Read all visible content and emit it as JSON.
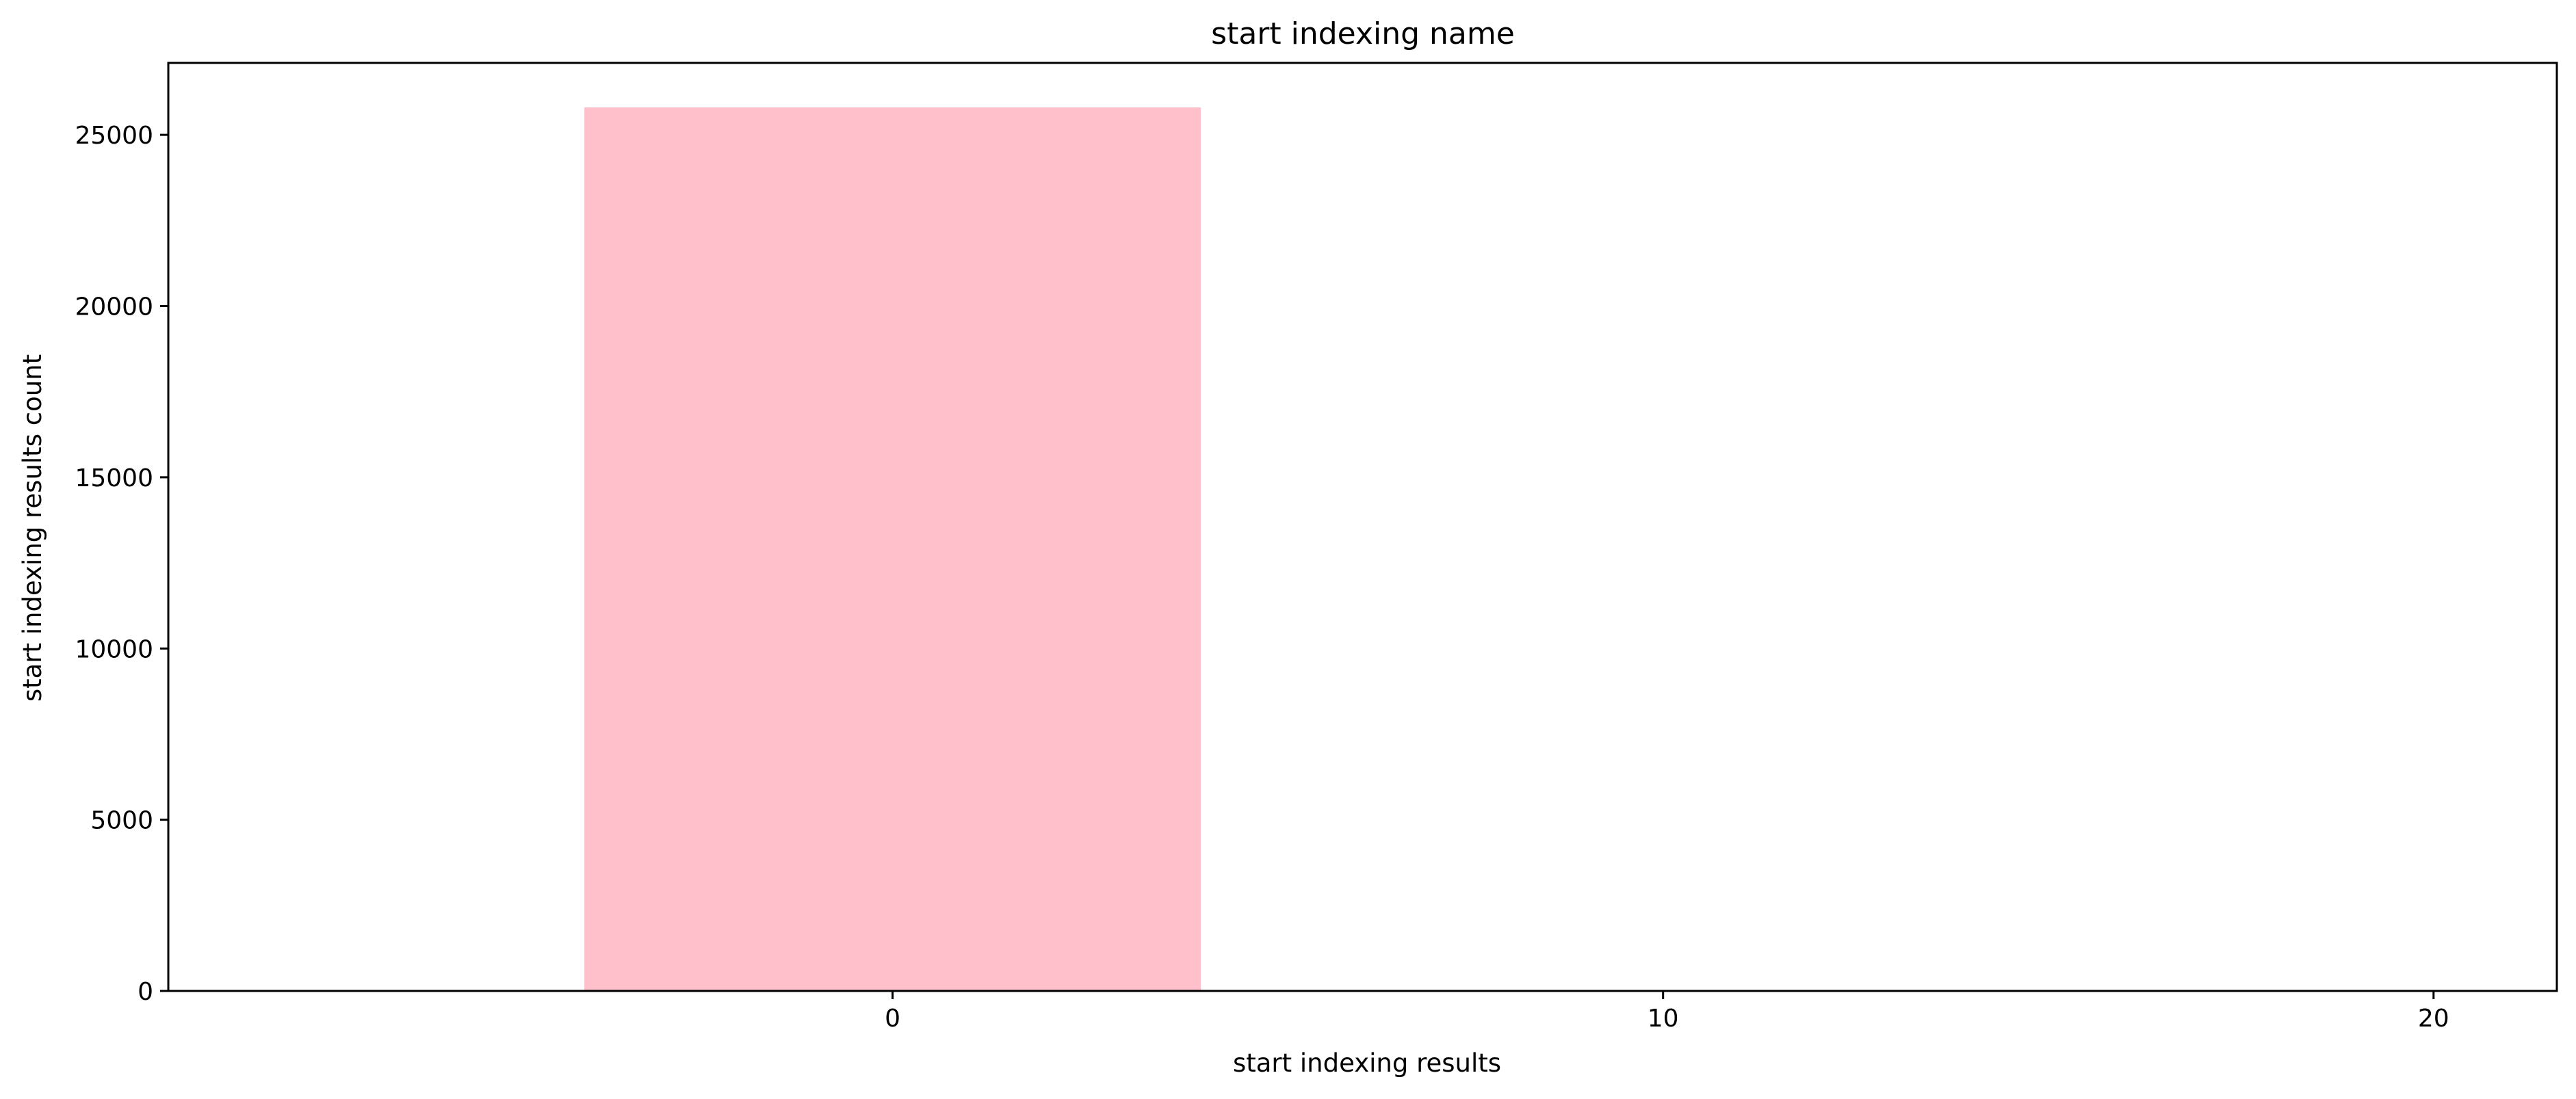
{
  "chart_data": {
    "type": "bar",
    "title": "start indexing name",
    "xlabel": "start indexing results",
    "ylabel": "start indexing results count",
    "bars": [
      {
        "x_center": 0,
        "x_start": -4,
        "x_end": 4,
        "value": 25800
      }
    ],
    "xlim": [
      -9.4,
      21.6
    ],
    "ylim": [
      0,
      27100
    ],
    "xticks": [
      0,
      10,
      20
    ],
    "yticks": [
      0,
      5000,
      10000,
      15000,
      20000,
      25000
    ],
    "bar_color": "#ffc0cb",
    "grid": false,
    "legend": "none"
  }
}
